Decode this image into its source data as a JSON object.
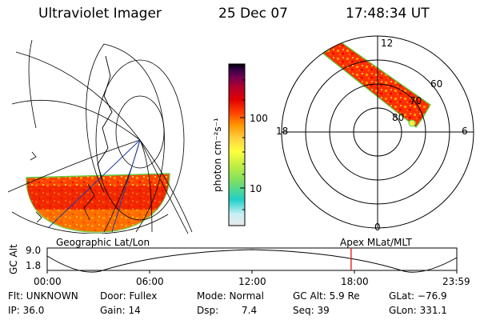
{
  "header": {
    "instrument": "Ultraviolet Imager",
    "date": "25 Dec 07",
    "time": "17:48:34 UT"
  },
  "colorbar": {
    "unit": "photon cm⁻²s⁻¹",
    "ticks": [
      "100",
      "10"
    ],
    "scale": "log",
    "colors": [
      "#e8e8e8",
      "#c9f0f5",
      "#20d0c8",
      "#80e060",
      "#c8f040",
      "#ffff40",
      "#ffd040",
      "#ff9800",
      "#ff4000",
      "#e00000",
      "#b00030",
      "#700050",
      "#300040",
      "#000000"
    ]
  },
  "geo_panel": {
    "label": "Geographic Lat/Lon"
  },
  "polar_panel": {
    "label": "Apex MLat/MLT",
    "mlt_labels": [
      "12",
      "18",
      "6",
      "0"
    ],
    "lat_labels": [
      "60",
      "70",
      "80"
    ]
  },
  "altitude_plot": {
    "ylabel": "GC Alt",
    "yticks": [
      "9.0",
      "1.8"
    ],
    "xticks": [
      "00:00",
      "06:00",
      "12:00",
      "18:00",
      "23:59"
    ],
    "marker_time_hours": 17.81,
    "marker_color": "#e00000"
  },
  "footer": {
    "flt": "Flt: UNKNOWN",
    "ip": "IP: 36.0",
    "door": "Door: Fullex",
    "gain": "Gain: 14",
    "mode": "Mode: Normal",
    "dsp_label": "Dsp:",
    "dsp_value": "7.4",
    "gc_alt": "GC Alt: 5.9 Re",
    "seq": "Seq: 39",
    "glat": "GLat: −76.9",
    "glon": "GLon: 331.1"
  }
}
